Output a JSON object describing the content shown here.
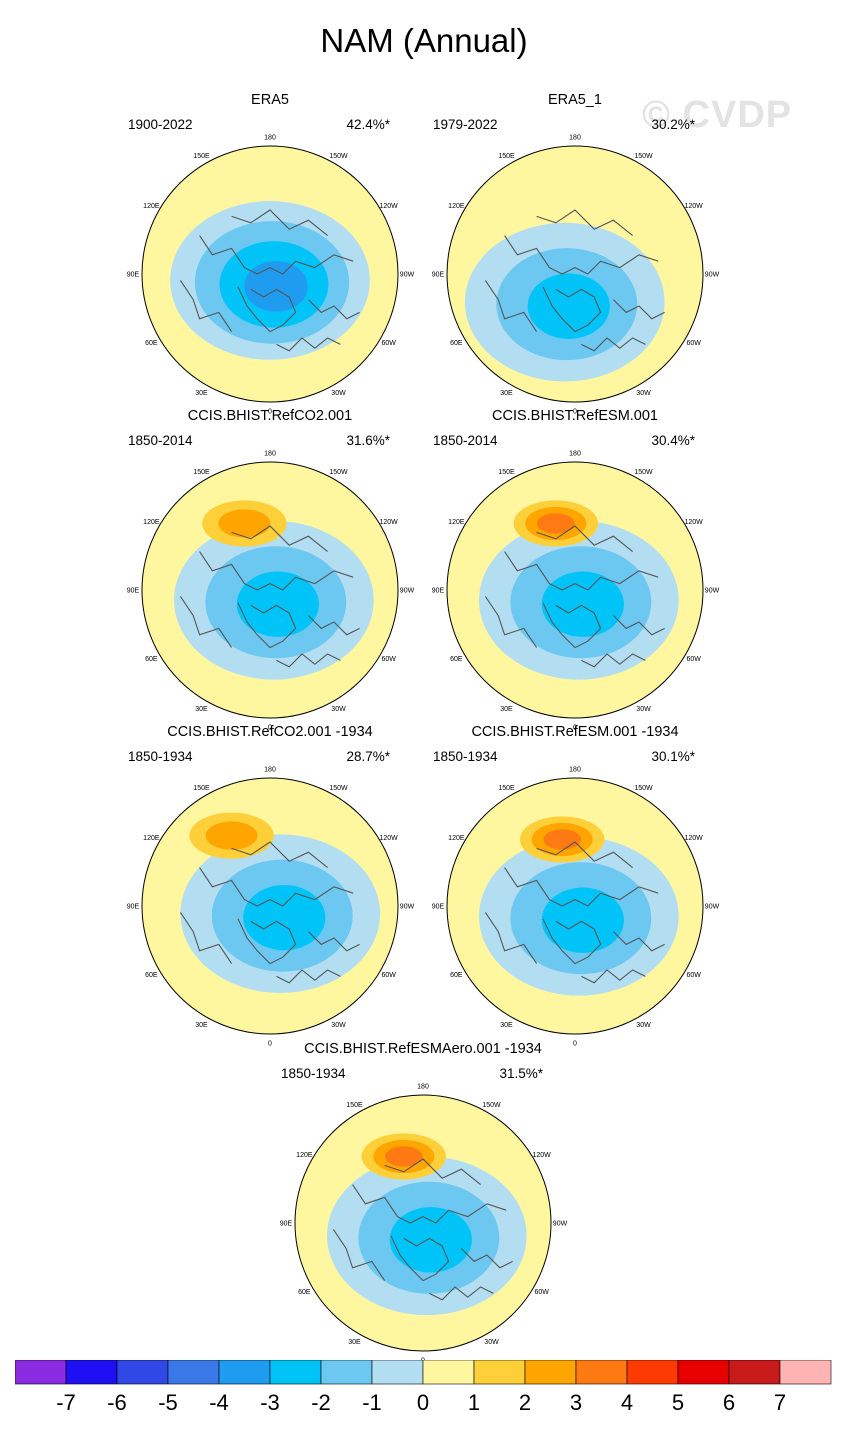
{
  "title": "NAM (Annual)",
  "watermark": "© CVDP",
  "longitude_labels": [
    "180",
    "150E",
    "120E",
    "90E",
    "60E",
    "30E",
    "0",
    "30W",
    "60W",
    "90W",
    "120W",
    "150W"
  ],
  "colors": {
    "levels": [
      "#8a2be2",
      "#1e10f2",
      "#2f48e6",
      "#3a78e8",
      "#1f9bf0",
      "#00c4f7",
      "#6cc8f0",
      "#b3def2",
      "#fff7a0",
      "#fdd03a",
      "#ffa500",
      "#ff7a12",
      "#ff3a00",
      "#e80000",
      "#c81a1a",
      "#ffb4b4"
    ],
    "land_outline": "#555555"
  },
  "chart_data": {
    "type": "polar_contour_map",
    "title": "NAM (Annual)",
    "colorbar": {
      "tick_labels": [
        "-7",
        "-6",
        "-5",
        "-4",
        "-3",
        "-2",
        "-1",
        "0",
        "1",
        "2",
        "3",
        "4",
        "5",
        "6",
        "7"
      ],
      "bins": 16
    },
    "panels": [
      {
        "name": "ERA5",
        "period": "1900-2022",
        "percent": "42.4%*",
        "peak": -3.5,
        "pos_peak": 0,
        "neg_center": [
          0.0,
          0.05
        ],
        "pos_center": [
          -0.15,
          0.55
        ]
      },
      {
        "name": "ERA5_1",
        "period": "1979-2022",
        "percent": "30.2%*",
        "peak": -3.0,
        "pos_peak": 0,
        "neg_center": [
          -0.08,
          0.22
        ],
        "pos_center": [
          -0.15,
          0.55
        ]
      },
      {
        "name": "CCIS.BHIST.RefCO2.001",
        "period": "1850-2014",
        "percent": "31.6%*",
        "peak": -3.0,
        "pos_peak": 1.6,
        "neg_center": [
          0.03,
          0.08
        ],
        "pos_center": [
          -0.2,
          -0.52
        ]
      },
      {
        "name": "CCIS.BHIST.RefESM.001",
        "period": "1850-2014",
        "percent": "30.4%*",
        "peak": -3.0,
        "pos_peak": 2.3,
        "neg_center": [
          0.03,
          0.08
        ],
        "pos_center": [
          -0.15,
          -0.52
        ]
      },
      {
        "name": "CCIS.BHIST.RefCO2.001 -1934",
        "period": "1850-1934",
        "percent": "28.7%*",
        "peak": -2.8,
        "pos_peak": 1.6,
        "neg_center": [
          0.08,
          0.06
        ],
        "pos_center": [
          -0.3,
          -0.55
        ]
      },
      {
        "name": "CCIS.BHIST.RefESM.001 -1934",
        "period": "1850-1934",
        "percent": "30.1%*",
        "peak": -2.6,
        "pos_peak": 2.4,
        "neg_center": [
          0.03,
          0.08
        ],
        "pos_center": [
          -0.1,
          -0.52
        ]
      },
      {
        "name": "CCIS.BHIST.RefESMAero.001 -1934",
        "period": "1850-1934",
        "percent": "31.5%*",
        "peak": -3.0,
        "pos_peak": 2.2,
        "neg_center": [
          0.03,
          0.1
        ],
        "pos_center": [
          -0.15,
          -0.52
        ]
      }
    ]
  }
}
